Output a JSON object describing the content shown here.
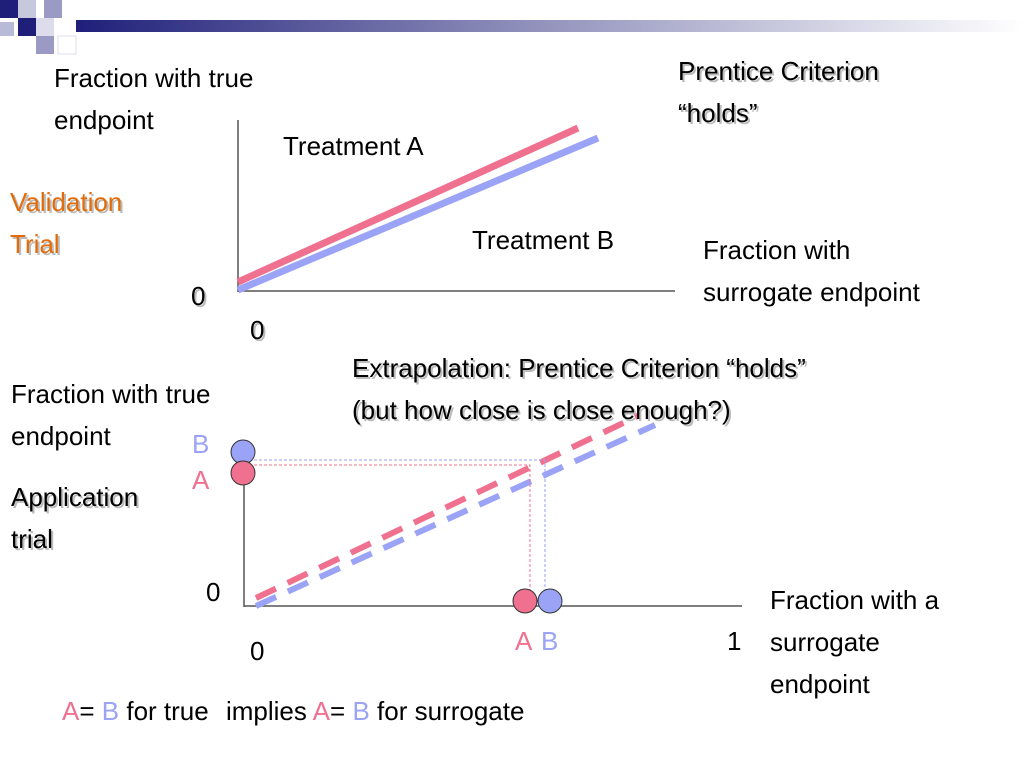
{
  "theme": {
    "pink": "#f07090",
    "blue": "#9aa3f5",
    "orange": "#e36c0a",
    "navy": "#1f1f7a"
  },
  "validation": {
    "y_axis_label": "Fraction with true\nendpoint",
    "x_axis_label": "Fraction with\nsurrogate endpoint",
    "title": "Prentice Criterion\n“holds”",
    "trial_label": "Validation\nTrial",
    "origin_y": "0",
    "origin_x": "0",
    "line_a_label": "Treatment A",
    "line_b_label": "Treatment B"
  },
  "application": {
    "caption": "Extrapolation: Prentice Criterion “holds”\n(but how close is close enough?)",
    "y_axis_label": "Fraction with true\nendpoint",
    "trial_label": "Application\ntrial",
    "x_axis_label": "Fraction with a\nsurrogate\nendpoint",
    "origin_y": "0",
    "origin_x": "0",
    "x_max": "1",
    "marker_b_y": "B",
    "marker_a_y": "A",
    "marker_a_x": "A",
    "marker_b_x": "B"
  },
  "conclusion": {
    "a1": "A",
    "eq1": "=",
    "b1": "B",
    "text1": "for true",
    "text2": "implies",
    "a2": "A",
    "eq2": "=",
    "b2": "B",
    "text3": "for surrogate"
  }
}
